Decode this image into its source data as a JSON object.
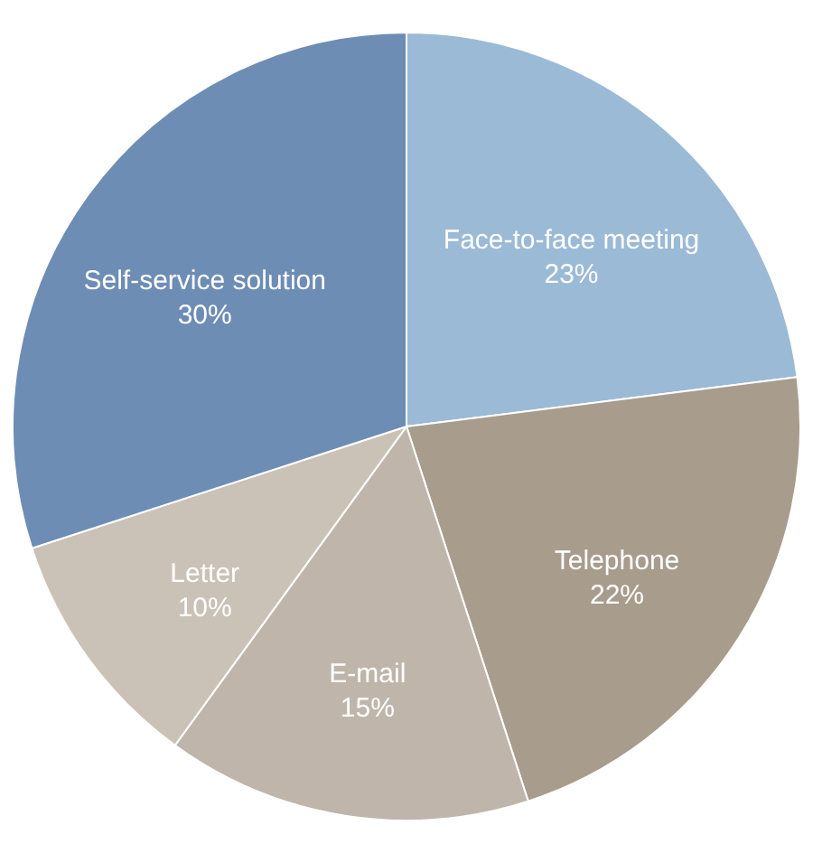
{
  "chart_data": {
    "type": "pie",
    "categories": [
      "Face-to-face meeting",
      "Telephone",
      "E-mail",
      "Letter",
      "Self-service solution"
    ],
    "values": [
      23,
      22,
      15,
      10,
      30
    ],
    "value_labels": [
      "23%",
      "22%",
      "15%",
      "10%",
      "30%"
    ],
    "colors": [
      "#9bbad6",
      "#a89c8c",
      "#bfb5aa",
      "#cbc2b7",
      "#6d8db5"
    ]
  }
}
